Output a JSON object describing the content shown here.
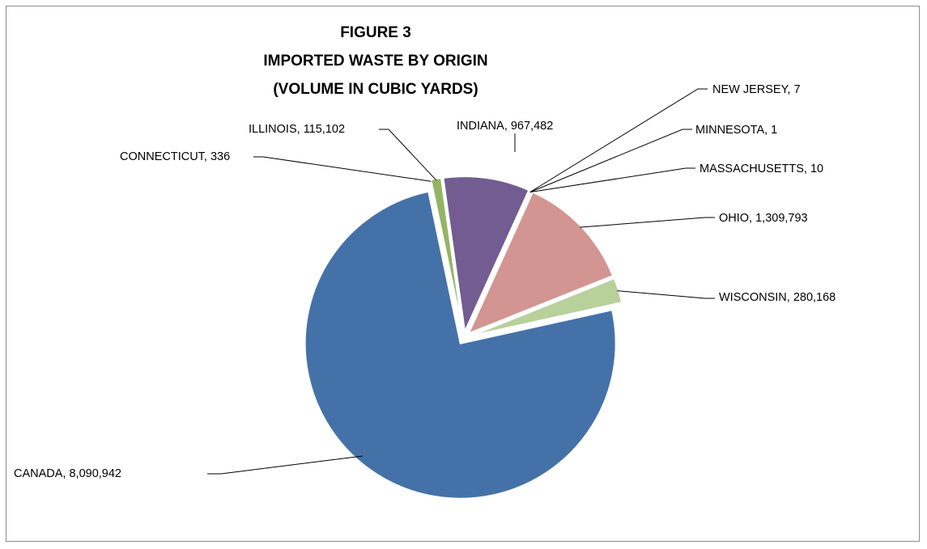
{
  "chart_data": {
    "type": "pie",
    "title": [
      "FIGURE 3",
      "IMPORTED WASTE BY ORIGIN",
      "(VOLUME IN CUBIC YARDS)"
    ],
    "categories": [
      "INDIANA",
      "NEW JERSEY",
      "MINNESOTA",
      "MASSACHUSETTS",
      "OHIO",
      "WISCONSIN",
      "CANADA",
      "CONNECTICUT",
      "ILLINOIS"
    ],
    "values": [
      967482,
      7,
      1,
      10,
      1309793,
      280168,
      8090942,
      336,
      115102
    ],
    "data_labels": [
      "INDIANA, 967,482",
      "NEW JERSEY, 7",
      "MINNESOTA, 1",
      "MASSACHUSETTS, 10",
      "OHIO, 1,309,793",
      "WISCONSIN, 280,168",
      "CANADA, 8,090,942",
      "CONNECTICUT, 336",
      "ILLINOIS, 115,102"
    ],
    "colors": [
      "#725c91",
      "#4a7ebb",
      "#c0504d",
      "#9bbb59",
      "#d29591",
      "#b8d09a",
      "#4472a8",
      "#7fae55",
      "#93b563"
    ],
    "exploded": true,
    "legend": "none"
  }
}
